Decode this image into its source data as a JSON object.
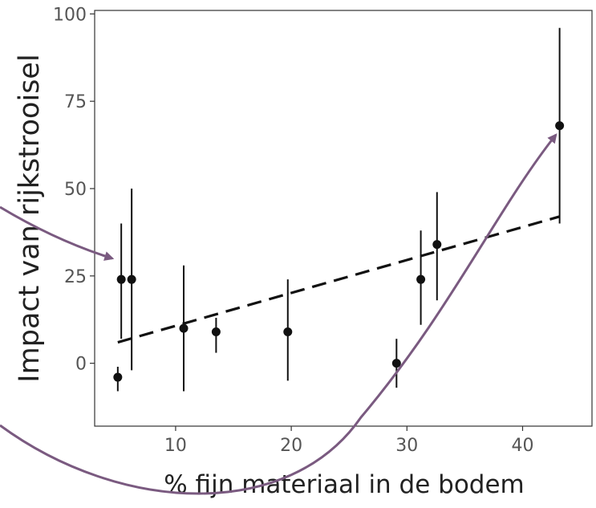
{
  "chart_data": {
    "type": "scatter",
    "xlabel": "% fijn materiaal in de bodem",
    "ylabel": "Impact van rijkstrooisel",
    "xlim": [
      3,
      46
    ],
    "ylim": [
      -18,
      101
    ],
    "x_ticks": [
      10,
      20,
      30,
      40
    ],
    "y_ticks": [
      0,
      25,
      50,
      75,
      100
    ],
    "grid": false,
    "points": [
      {
        "x": 5.0,
        "y": -4,
        "lo": -8,
        "hi": -1
      },
      {
        "x": 5.3,
        "y": 24,
        "lo": 7,
        "hi": 40
      },
      {
        "x": 6.2,
        "y": 24,
        "lo": -2,
        "hi": 50
      },
      {
        "x": 10.7,
        "y": 10,
        "lo": -8,
        "hi": 28
      },
      {
        "x": 13.5,
        "y": 9,
        "lo": 3,
        "hi": 13
      },
      {
        "x": 19.7,
        "y": 9,
        "lo": -5,
        "hi": 24
      },
      {
        "x": 29.1,
        "y": 0,
        "lo": -7,
        "hi": 7
      },
      {
        "x": 31.2,
        "y": 24,
        "lo": 11,
        "hi": 38
      },
      {
        "x": 32.6,
        "y": 34,
        "lo": 18,
        "hi": 49
      },
      {
        "x": 43.2,
        "y": 68,
        "lo": 40,
        "hi": 96
      }
    ],
    "trend_line": {
      "style": "dashed",
      "x": [
        5.0,
        43.2
      ],
      "y": [
        6,
        42
      ]
    },
    "annotation_arrow_color": "#7a5a80"
  }
}
